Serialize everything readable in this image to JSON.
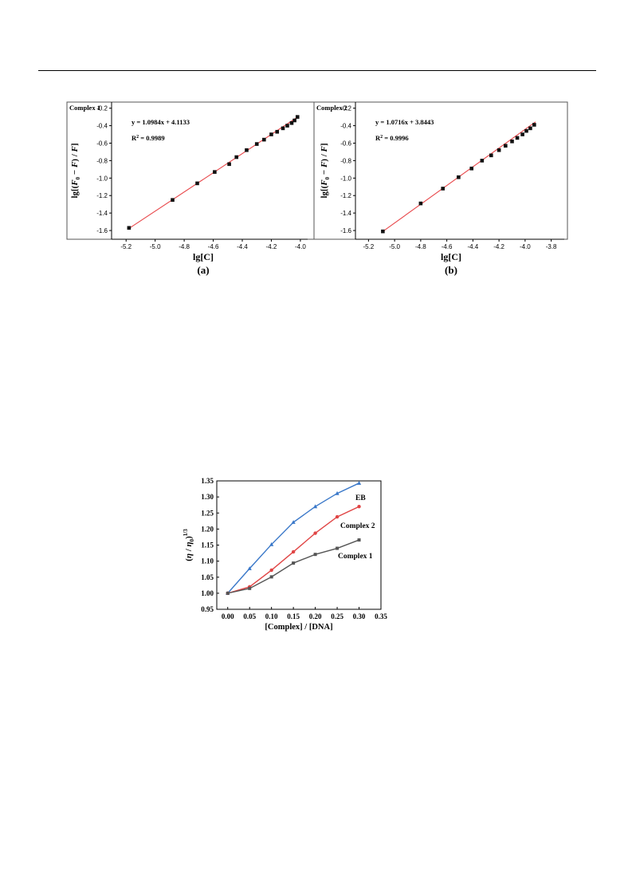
{
  "chart_data": [
    {
      "type": "scatter",
      "panel_label": "(a)",
      "annotation_title": "Complex 1",
      "equation": "y = 1.0984x + 4.1133",
      "r2_label": "R",
      "r2_value": " = 0.9989",
      "xlabel": "lg[C]",
      "ylabel_prefix": "lg[(",
      "ylabel_f0": "F",
      "ylabel_sub": "0",
      "ylabel_mid": "−",
      "ylabel_f": "F",
      "ylabel_suffix": ") / ",
      "ylabel_f2": "F",
      "ylabel_end": "]",
      "xlim": [
        -5.3,
        -3.95
      ],
      "ylim": [
        -1.7,
        -0.13
      ],
      "xticks": [
        -5.2,
        -5.0,
        -4.8,
        -4.6,
        -4.4,
        -4.2,
        -4.0
      ],
      "xtick_labels": [
        "-5.2",
        "-5.0",
        "-4.8",
        "-4.6",
        "-4.4",
        "-4.2",
        "-4.0"
      ],
      "yticks": [
        -1.6,
        -1.4,
        -1.2,
        -1.0,
        -0.8,
        -0.6,
        -0.4,
        -0.2
      ],
      "ytick_labels": [
        "-1.6",
        "-1.4",
        "-1.2",
        "-1.0",
        "-0.8",
        "-0.6",
        "-0.4",
        "-0.2"
      ],
      "slope": 1.0984,
      "intercept": 4.1133,
      "fit_range": [
        -5.18,
        -4.02
      ],
      "x": [
        -5.18,
        -4.88,
        -4.71,
        -4.59,
        -4.49,
        -4.44,
        -4.37,
        -4.3,
        -4.25,
        -4.2,
        -4.16,
        -4.12,
        -4.09,
        -4.06,
        -4.04,
        -4.02
      ],
      "y": [
        -1.57,
        -1.25,
        -1.06,
        -0.93,
        -0.84,
        -0.76,
        -0.68,
        -0.61,
        -0.56,
        -0.5,
        -0.47,
        -0.43,
        -0.4,
        -0.37,
        -0.34,
        -0.3
      ],
      "marker_color": "#111111",
      "line_color": "#e8474a"
    },
    {
      "type": "scatter",
      "panel_label": "(b)",
      "annotation_title": "Complex 2",
      "equation": "y = 1.0716x + 3.8443",
      "r2_label": "R",
      "r2_value": " = 0.9996",
      "xlabel": "lg[C]",
      "ylabel_prefix": "lg[(",
      "ylabel_f0": "F",
      "ylabel_sub": "0",
      "ylabel_mid": "−",
      "ylabel_f": "F",
      "ylabel_suffix": ") / ",
      "ylabel_f2": "F",
      "ylabel_end": "]",
      "xlim": [
        -5.3,
        -3.7
      ],
      "ylim": [
        -1.7,
        -0.13
      ],
      "xticks": [
        -5.2,
        -5.0,
        -4.8,
        -4.6,
        -4.4,
        -4.2,
        -4.0,
        -3.8
      ],
      "xtick_labels": [
        "-5.2",
        "-5.0",
        "-4.8",
        "-4.6",
        "-4.4",
        "-4.2",
        "-4.0",
        "-3.8"
      ],
      "yticks": [
        -1.6,
        -1.4,
        -1.2,
        -1.0,
        -0.8,
        -0.6,
        -0.4,
        -0.2
      ],
      "ytick_labels": [
        "-1.6",
        "-1.4",
        "-1.2",
        "-1.0",
        "-0.8",
        "-0.6",
        "-0.4",
        "-0.2"
      ],
      "slope": 1.0716,
      "intercept": 3.8443,
      "fit_range": [
        -5.09,
        -3.92
      ],
      "x": [
        -5.09,
        -4.8,
        -4.63,
        -4.51,
        -4.41,
        -4.33,
        -4.26,
        -4.2,
        -4.15,
        -4.1,
        -4.06,
        -4.02,
        -3.99,
        -3.96,
        -3.93
      ],
      "y": [
        -1.61,
        -1.29,
        -1.12,
        -0.99,
        -0.89,
        -0.8,
        -0.74,
        -0.68,
        -0.63,
        -0.58,
        -0.54,
        -0.5,
        -0.46,
        -0.43,
        -0.39
      ],
      "marker_color": "#111111",
      "line_color": "#e8474a"
    },
    {
      "type": "line",
      "xlabel": "[Complex] / [DNA]",
      "ylabel_eta": "η",
      "ylabel_sep": " / ",
      "ylabel_eta0": "η",
      "ylabel_sub": "0",
      "ylabel_sup": "1/3",
      "xlim": [
        -0.025,
        0.35
      ],
      "ylim": [
        0.95,
        1.35
      ],
      "xticks": [
        0.0,
        0.05,
        0.1,
        0.15,
        0.2,
        0.25,
        0.3,
        0.35
      ],
      "xtick_labels": [
        "0.00",
        "0.05",
        "0.10",
        "0.15",
        "0.20",
        "0.25",
        "0.30",
        "0.35"
      ],
      "yticks": [
        0.95,
        1.0,
        1.05,
        1.1,
        1.15,
        1.2,
        1.25,
        1.3,
        1.35
      ],
      "ytick_labels": [
        "0.95",
        "1.00",
        "1.05",
        "1.10",
        "1.15",
        "1.20",
        "1.25",
        "1.30",
        "1.35"
      ],
      "x": [
        0.0,
        0.05,
        0.1,
        0.15,
        0.2,
        0.25,
        0.3
      ],
      "series": [
        {
          "name": "EB",
          "values": [
            1.0,
            1.077,
            1.152,
            1.221,
            1.27,
            1.311,
            1.343
          ],
          "color": "#3a78c9",
          "marker": "triangle"
        },
        {
          "name": "Complex 2",
          "values": [
            1.0,
            1.02,
            1.072,
            1.129,
            1.187,
            1.238,
            1.27
          ],
          "color": "#e04545",
          "marker": "circle"
        },
        {
          "name": "Complex 1",
          "values": [
            1.0,
            1.015,
            1.051,
            1.094,
            1.121,
            1.14,
            1.166
          ],
          "color": "#555555",
          "marker": "square"
        }
      ]
    }
  ]
}
